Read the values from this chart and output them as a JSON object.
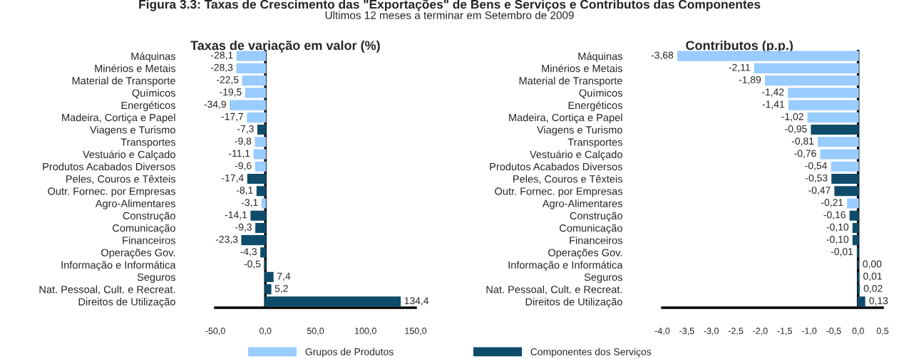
{
  "chart_data": [
    {
      "type": "bar",
      "orientation": "horizontal",
      "title": "Taxas de variação em valor (%)",
      "annotations": [
        "Figura 3.3: Taxas de Crescimento das \"Exportações\" de Bens e Serviços e Contributos das Componentes",
        "Ultimos 12 meses a terminar em Setembro de 2009"
      ],
      "categories": [
        "Máquinas",
        "Minérios e Metais",
        "Material de Transporte",
        "Químicos",
        "Energéticos",
        "Madeira, Cortiça e Papel",
        "Viagens e Turismo",
        "Transportes",
        "Vestuário e Calçado",
        "Produtos Acabados Diversos",
        "Peles, Couros e Têxteis",
        "Outr. Fornec. por Empresas",
        "Agro-Alimentares",
        "Construção",
        "Comunicação",
        "Financeiros",
        "Operações Gov.",
        "Informação e Informática",
        "Seguros",
        "Nat. Pessoal, Cult. e Recreat.",
        "Direitos de Utilização"
      ],
      "series": [
        {
          "name": "Grupos de Produtos",
          "color": "#99ccff",
          "values": [
            -28.1,
            -28.3,
            -22.5,
            -19.5,
            -34.9,
            -17.7,
            null,
            -9.8,
            -11.1,
            -9.6,
            null,
            null,
            -3.1,
            null,
            null,
            null,
            null,
            null,
            null,
            null,
            null
          ],
          "value_labels": [
            "-28,1",
            "-28,3",
            "-22,5",
            "-19,5",
            "-34,9",
            "-17,7",
            null,
            "-9,8",
            "-11,1",
            "-9,6",
            null,
            null,
            "-3,1",
            null,
            null,
            null,
            null,
            null,
            null,
            null,
            null
          ]
        },
        {
          "name": "Componentes dos Serviços",
          "color": "#0f4c6b",
          "values": [
            null,
            null,
            null,
            null,
            null,
            null,
            -7.3,
            null,
            null,
            null,
            -17.4,
            -8.1,
            null,
            -14.1,
            -9.3,
            -23.3,
            -4.3,
            -0.5,
            7.4,
            5.2,
            134.4
          ],
          "value_labels": [
            null,
            null,
            null,
            null,
            null,
            null,
            "-7,3",
            null,
            null,
            null,
            "-17,4",
            "-8,1",
            null,
            "-14,1",
            "-9,3",
            "-23,3",
            "-4,3",
            "-0,5",
            "7,4",
            "5,2",
            "134,4"
          ]
        }
      ],
      "xlim": [
        -50,
        150
      ],
      "xticks": [
        {
          "value": -50,
          "label": "-50,0"
        },
        {
          "value": 0,
          "label": "0,0"
        },
        {
          "value": 50,
          "label": "50,0"
        },
        {
          "value": 100,
          "label": "100,0"
        },
        {
          "value": 150,
          "label": "150,0"
        }
      ],
      "ref_lines": [
        {
          "axis": "x",
          "value": 0,
          "color": "#000000"
        }
      ],
      "legend": "bottom",
      "grid": false
    },
    {
      "type": "bar",
      "orientation": "horizontal",
      "title": "Contributos (p.p.)",
      "categories": [
        "Máquinas",
        "Minérios e Metais",
        "Material de Transporte",
        "Químicos",
        "Energéticos",
        "Madeira, Cortiça e Papel",
        "Viagens e Turismo",
        "Transportes",
        "Vestuário e Calçado",
        "Produtos Acabados Diversos",
        "Peles, Couros e Têxteis",
        "Outr. Fornec. por Empresas",
        "Agro-Alimentares",
        "Construção",
        "Comunicação",
        "Financeiros",
        "Operações Gov.",
        "Informação e Informática",
        "Seguros",
        "Nat. Pessoal, Cult. e Recreat.",
        "Direitos de Utilização"
      ],
      "series": [
        {
          "name": "Grupos de Produtos",
          "color": "#99ccff",
          "values": [
            -3.68,
            -2.11,
            -1.89,
            -1.42,
            -1.41,
            -1.02,
            null,
            -0.81,
            -0.76,
            -0.54,
            null,
            null,
            -0.21,
            null,
            null,
            null,
            null,
            null,
            null,
            null,
            null
          ],
          "value_labels": [
            "-3,68",
            "-2,11",
            "-1,89",
            "-1,42",
            "-1,41",
            "-1,02",
            null,
            "-0,81",
            "-0,76",
            "-0,54",
            null,
            null,
            "-0,21",
            null,
            null,
            null,
            null,
            null,
            null,
            null,
            null
          ]
        },
        {
          "name": "Componentes dos Serviços",
          "color": "#0f4c6b",
          "values": [
            null,
            null,
            null,
            null,
            null,
            null,
            -0.95,
            null,
            null,
            null,
            -0.53,
            -0.47,
            null,
            -0.16,
            -0.1,
            -0.1,
            -0.01,
            0.0,
            0.01,
            0.02,
            0.13
          ],
          "value_labels": [
            null,
            null,
            null,
            null,
            null,
            null,
            "-0,95",
            null,
            null,
            null,
            "-0,53",
            "-0,47",
            null,
            "-0,16",
            "-0,10",
            "-0,10",
            "-0,01",
            "0,00",
            "0,01",
            "0,02",
            "0,13"
          ]
        }
      ],
      "xlim": [
        -4.0,
        0.5
      ],
      "xticks": [
        {
          "value": -4.0,
          "label": "-4,0"
        },
        {
          "value": -3.5,
          "label": "-3,5"
        },
        {
          "value": -3.0,
          "label": "-3,0"
        },
        {
          "value": -2.5,
          "label": "-2,5"
        },
        {
          "value": -2.0,
          "label": "-2,0"
        },
        {
          "value": -1.5,
          "label": "-1,5"
        },
        {
          "value": -1.0,
          "label": "-1,0"
        },
        {
          "value": -0.5,
          "label": "-0,5"
        },
        {
          "value": 0.0,
          "label": "0,0"
        },
        {
          "value": 0.5,
          "label": "0,5"
        }
      ],
      "ref_lines": [
        {
          "axis": "x",
          "value": 0,
          "color": "#000000"
        }
      ],
      "grid": false
    }
  ]
}
